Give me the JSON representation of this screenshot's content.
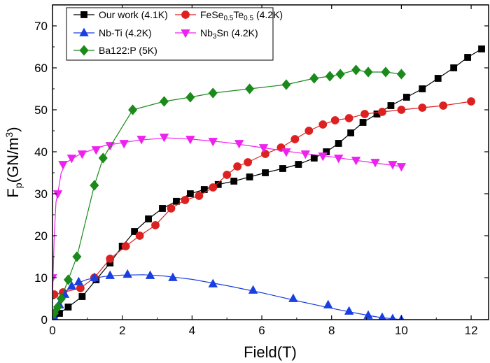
{
  "chart_data": {
    "type": "line",
    "title": "",
    "xlabel": "Field(T)",
    "ylabel": {
      "base": "F",
      "sub": "p",
      "main": "(GN/m",
      "sup": "3",
      "close": ")"
    },
    "xlim": [
      0,
      12.5
    ],
    "ylim": [
      0,
      75
    ],
    "xticks": [
      0,
      2,
      4,
      6,
      8,
      10,
      12
    ],
    "yticks": [
      0,
      10,
      20,
      30,
      40,
      50,
      60,
      70
    ],
    "grid": false,
    "legend_position": "top-left",
    "series": [
      {
        "name": "Our work (4.1K)",
        "legend": [
          {
            "t": "Our work (4.1K)"
          }
        ],
        "color": "#000000",
        "marker": "square",
        "x": [
          0.05,
          0.2,
          0.45,
          0.85,
          1.25,
          1.65,
          2.0,
          2.35,
          2.75,
          3.15,
          3.55,
          3.95,
          4.35,
          4.75,
          5.2,
          5.65,
          6.1,
          6.6,
          7.05,
          7.5,
          7.85,
          8.2,
          8.55,
          8.9,
          9.3,
          9.7,
          10.15,
          10.6,
          11.05,
          11.5,
          11.9,
          12.3
        ],
        "y": [
          0.3,
          1.5,
          3.0,
          5.5,
          9.5,
          13.5,
          17.5,
          21.0,
          24.0,
          26.5,
          28.2,
          30.0,
          31.0,
          32.2,
          33.0,
          34.0,
          35.0,
          36.0,
          37.0,
          38.5,
          40.0,
          42.0,
          44.5,
          47.0,
          49.0,
          51.0,
          53.0,
          55.0,
          57.5,
          60.0,
          62.5,
          64.5
        ]
      },
      {
        "name": "FeSe0.5Te0.5 (4.2K)",
        "legend": [
          {
            "t": "FeSe"
          },
          {
            "t": "0.5",
            "sub": true
          },
          {
            "t": "Te"
          },
          {
            "t": "0.5",
            "sub": true
          },
          {
            "t": " (4.2K)"
          }
        ],
        "color": "#dd2020",
        "marker": "circle",
        "x": [
          0.05,
          0.3,
          0.8,
          1.2,
          1.65,
          2.1,
          2.5,
          2.95,
          3.4,
          3.8,
          4.2,
          4.6,
          5.0,
          5.3,
          5.6,
          6.1,
          6.55,
          6.95,
          7.35,
          7.75,
          8.1,
          8.5,
          8.95,
          9.45,
          10.0,
          10.6,
          11.2,
          12.0
        ],
        "y": [
          6.0,
          6.5,
          7.5,
          10.0,
          14.5,
          17.5,
          20.0,
          22.5,
          26.5,
          28.5,
          29.5,
          31.5,
          34.5,
          36.5,
          37.5,
          39.5,
          41.0,
          43.0,
          45.0,
          46.5,
          47.5,
          48.0,
          49.0,
          49.5,
          50.0,
          50.5,
          51.0,
          52.0
        ]
      },
      {
        "name": "Nb-Ti (4.2K)",
        "legend": [
          {
            "t": "Nb-Ti (4.2K)"
          }
        ],
        "color": "#1a3fe0",
        "marker": "triangle-up",
        "x": [
          0.05,
          0.2,
          0.35,
          0.55,
          0.75,
          1.2,
          1.65,
          2.15,
          2.8,
          3.45,
          4.6,
          5.75,
          6.9,
          7.9,
          8.5,
          9.05,
          9.45,
          9.75,
          10.0
        ],
        "y": [
          0.5,
          3.5,
          6.0,
          8.0,
          9.0,
          10.0,
          10.5,
          10.8,
          10.5,
          10.0,
          8.5,
          7.0,
          5.0,
          3.5,
          2.0,
          1.0,
          0.5,
          0.2,
          0.0
        ],
        "curve": [
          [
            0,
            0
          ],
          [
            0.15,
            4.0
          ],
          [
            0.35,
            6.5
          ],
          [
            0.65,
            8.5
          ],
          [
            1.0,
            9.6
          ],
          [
            1.5,
            10.3
          ],
          [
            2.0,
            10.6
          ],
          [
            2.6,
            10.7
          ],
          [
            3.2,
            10.4
          ],
          [
            4.0,
            9.6
          ],
          [
            5.0,
            8.1
          ],
          [
            6.0,
            6.4
          ],
          [
            7.0,
            4.5
          ],
          [
            8.0,
            2.7
          ],
          [
            8.8,
            1.4
          ],
          [
            9.4,
            0.5
          ],
          [
            10.0,
            0.0
          ]
        ]
      },
      {
        "name": "Nb3Sn (4.2K)",
        "legend": [
          {
            "t": "Nb"
          },
          {
            "t": "3",
            "sub": true
          },
          {
            "t": "Sn (4.2K)"
          }
        ],
        "color": "#ee22ee",
        "marker": "triangle-down",
        "x": [
          0.0,
          0.15,
          0.3,
          0.55,
          0.85,
          1.25,
          1.65,
          2.05,
          2.55,
          3.2,
          3.95,
          4.6,
          5.35,
          6.05,
          6.7,
          7.25,
          7.75,
          8.2,
          8.7,
          9.25,
          9.75,
          10.0
        ],
        "y": [
          10.0,
          30.0,
          37.0,
          38.5,
          39.5,
          40.5,
          41.5,
          42.0,
          43.0,
          43.5,
          43.0,
          42.5,
          42.0,
          41.0,
          40.0,
          39.5,
          39.0,
          38.5,
          38.0,
          37.5,
          37.0,
          36.5
        ],
        "curve": [
          [
            0,
            5.0
          ],
          [
            0.05,
            20.0
          ],
          [
            0.1,
            28.0
          ],
          [
            0.15,
            30.0
          ],
          [
            0.25,
            35.0
          ],
          [
            0.4,
            37.5
          ],
          [
            0.8,
            39.5
          ],
          [
            1.5,
            41.5
          ],
          [
            2.5,
            42.8
          ],
          [
            3.3,
            43.3
          ],
          [
            4.0,
            43.0
          ],
          [
            5.0,
            42.2
          ],
          [
            6.0,
            41.0
          ],
          [
            7.0,
            39.8
          ],
          [
            8.0,
            38.8
          ],
          [
            9.0,
            37.6
          ],
          [
            10.0,
            36.5
          ]
        ]
      },
      {
        "name": "Ba122:P (5K)",
        "legend": [
          {
            "t": "Ba122:P (5K)"
          }
        ],
        "color": "#1a8a1a",
        "marker": "diamond",
        "x": [
          0.05,
          0.15,
          0.25,
          0.45,
          0.7,
          1.2,
          1.45,
          2.3,
          3.2,
          3.95,
          4.6,
          5.65,
          6.7,
          7.5,
          7.95,
          8.25,
          8.7,
          9.05,
          9.55,
          10.0
        ],
        "y": [
          1.5,
          3.0,
          5.0,
          9.5,
          15.0,
          32.0,
          38.5,
          50.0,
          52.0,
          53.0,
          54.0,
          55.0,
          56.0,
          57.5,
          58.0,
          58.5,
          59.5,
          59.0,
          59.0,
          58.5
        ]
      }
    ]
  }
}
